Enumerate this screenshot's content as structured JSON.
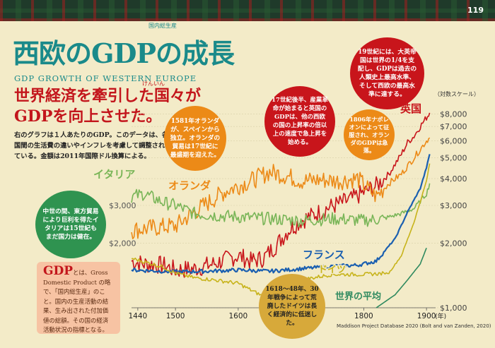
{
  "page_number": "119",
  "header": {
    "gloss": "国内総生産",
    "title": "西欧のGDPの成長",
    "subtitle_en": "GDP GROWTH OF WESTERN EUROPE",
    "ruby": "けんいん",
    "headline_1": "世界経済を牽引した国々が",
    "headline_2": "GDPを向上させた。",
    "intro": "右のグラフは１人あたりのGDP。このデータは、各国間の生活費の違いやインフレを考慮して調整されている。金額は2011年国際ドル換算による。"
  },
  "gdp_box": {
    "term": "GDP",
    "text": "とは、Gross Domestic Product の略で、「国内総生産」のこと。国内の生産活動の結果、生み出された付加価値の総額。その国の経済活動状況の指標となる。"
  },
  "annotations": {
    "italy": "中世の間、東方貿易により巨利を得たイタリアは15世紀もまだ国力は健在。",
    "dutch": "1581年オランダが、スペインから独立。オランダの貿易は17世紀に最盛期を迎えた。",
    "uk_17c": "17世紀後半、産業革命が始まると英国のGDPは、他の西欧の国の上昇率の倍以上の速度で急上昇を始める。",
    "uk_19c": "19世紀には、大英帝国は世界の1/4を支配し、GDPは過去の人類史上最高水準、そして西欧の最高水準に達する。",
    "napoleon": "1806年ナポレオンによって征服され、オランダのGDPは急落。",
    "germany": "1618～48年、30年戦争によって荒廃したドイツは長く経済的に低迷した。"
  },
  "source": "Maddison Project Database 2020 (Bolt and van Zanden, 2020)",
  "chart_data": {
    "type": "line",
    "y_scale": "log",
    "y_scale_label": "（対数スケール）",
    "xlim": [
      1430,
      1910
    ],
    "ylim": [
      1000,
      9000
    ],
    "x_ticks": [
      "1440",
      "1500",
      "1600",
      "1700",
      "1800",
      "1900"
    ],
    "x_unit": "(年)",
    "y_ticks_left": [
      "$3,000",
      "$2,000"
    ],
    "y_ticks_right": [
      "$8,000",
      "$7,000",
      "$6,000",
      "$5,000",
      "$4,000",
      "$3,000",
      "$2,000",
      "$1,000"
    ],
    "series": [
      {
        "name": "英国",
        "color": "#c8151b",
        "points": [
          [
            1430,
            1650
          ],
          [
            1450,
            1600
          ],
          [
            1480,
            1580
          ],
          [
            1500,
            1500
          ],
          [
            1530,
            1520
          ],
          [
            1560,
            1600
          ],
          [
            1600,
            1750
          ],
          [
            1620,
            1650
          ],
          [
            1640,
            1700
          ],
          [
            1660,
            1950
          ],
          [
            1680,
            2300
          ],
          [
            1700,
            2550
          ],
          [
            1720,
            2700
          ],
          [
            1740,
            2900
          ],
          [
            1760,
            3050
          ],
          [
            1780,
            3200
          ],
          [
            1800,
            3450
          ],
          [
            1820,
            3700
          ],
          [
            1840,
            4200
          ],
          [
            1860,
            5200
          ],
          [
            1870,
            5900
          ],
          [
            1880,
            6300
          ],
          [
            1890,
            7000
          ],
          [
            1900,
            7700
          ],
          [
            1905,
            8100
          ]
        ]
      },
      {
        "name": "オランダ",
        "color": "#ec8a17",
        "points": [
          [
            1430,
            2300
          ],
          [
            1460,
            2350
          ],
          [
            1490,
            2400
          ],
          [
            1500,
            2400
          ],
          [
            1530,
            2800
          ],
          [
            1560,
            3200
          ],
          [
            1580,
            3500
          ],
          [
            1600,
            3700
          ],
          [
            1620,
            3900
          ],
          [
            1650,
            4300
          ],
          [
            1680,
            4100
          ],
          [
            1700,
            3900
          ],
          [
            1730,
            3950
          ],
          [
            1760,
            3900
          ],
          [
            1790,
            4000
          ],
          [
            1806,
            3600
          ],
          [
            1820,
            3300
          ],
          [
            1840,
            3800
          ],
          [
            1860,
            4200
          ],
          [
            1880,
            5000
          ],
          [
            1900,
            6000
          ],
          [
            1905,
            6200
          ]
        ]
      },
      {
        "name": "イタリア",
        "color": "#79b557",
        "points": [
          [
            1430,
            3300
          ],
          [
            1450,
            3400
          ],
          [
            1480,
            3100
          ],
          [
            1500,
            3000
          ],
          [
            1530,
            2750
          ],
          [
            1560,
            2700
          ],
          [
            1600,
            2650
          ],
          [
            1650,
            2600
          ],
          [
            1700,
            2550
          ],
          [
            1750,
            2600
          ],
          [
            1800,
            2550
          ],
          [
            1830,
            2600
          ],
          [
            1860,
            2750
          ],
          [
            1880,
            2900
          ],
          [
            1900,
            3400
          ],
          [
            1905,
            3800
          ]
        ]
      },
      {
        "name": "フランス",
        "color": "#1a5fb0",
        "points": [
          [
            1430,
            1500
          ],
          [
            1480,
            1480
          ],
          [
            1500,
            1470
          ],
          [
            1550,
            1480
          ],
          [
            1600,
            1500
          ],
          [
            1650,
            1480
          ],
          [
            1700,
            1520
          ],
          [
            1750,
            1560
          ],
          [
            1790,
            1580
          ],
          [
            1820,
            1650
          ],
          [
            1850,
            2100
          ],
          [
            1870,
            2800
          ],
          [
            1890,
            3600
          ],
          [
            1900,
            4500
          ],
          [
            1905,
            5200
          ]
        ]
      },
      {
        "name": "ドイツ",
        "color": "#c7b31a",
        "points": [
          [
            1430,
            1700
          ],
          [
            1480,
            1550
          ],
          [
            1500,
            1450
          ],
          [
            1530,
            1380
          ],
          [
            1560,
            1350
          ],
          [
            1600,
            1300
          ],
          [
            1620,
            1210
          ],
          [
            1640,
            1130
          ],
          [
            1650,
            1150
          ],
          [
            1700,
            1350
          ],
          [
            1750,
            1430
          ],
          [
            1800,
            1430
          ],
          [
            1840,
            1450
          ],
          [
            1860,
            1750
          ],
          [
            1880,
            2500
          ],
          [
            1900,
            3900
          ],
          [
            1905,
            4700
          ]
        ]
      },
      {
        "name": "世界の平均",
        "color": "#2f8a5f",
        "points": [
          [
            1820,
            1000
          ],
          [
            1850,
            1150
          ],
          [
            1870,
            1350
          ],
          [
            1890,
            1600
          ],
          [
            1900,
            1900
          ]
        ]
      }
    ]
  }
}
